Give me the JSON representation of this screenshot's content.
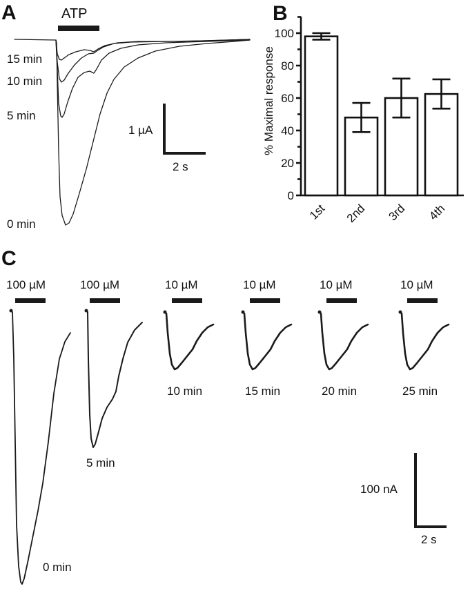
{
  "panels": {
    "A": {
      "letter": "A",
      "stimulus_label": "ATP",
      "trace_labels": [
        "15 min",
        "10 min",
        "5 min",
        "0 min"
      ],
      "scalebar": {
        "y_label": "1 µA",
        "x_label": "2 s"
      }
    },
    "B": {
      "letter": "B"
    },
    "C": {
      "letter": "C",
      "scalebar": {
        "y_label": "100 nA",
        "x_label": "2 s"
      },
      "traces": [
        {
          "concentration": "100 µM",
          "time": "0 min"
        },
        {
          "concentration": "100 µM",
          "time": "5 min"
        },
        {
          "concentration": "10 µM",
          "time": "10 min"
        },
        {
          "concentration": "10 µM",
          "time": "15 min"
        },
        {
          "concentration": "10 µM",
          "time": "20 min"
        },
        {
          "concentration": "10 µM",
          "time": "25 min"
        }
      ]
    }
  },
  "chart_data": [
    {
      "panel": "A",
      "type": "line",
      "title": "",
      "xlabel": "",
      "ylabel": "",
      "description": "Superimposed current traces evoked by ATP application at successive times",
      "series": [
        {
          "name": "0 min",
          "relative_peak": 1.0
        },
        {
          "name": "5 min",
          "relative_peak": 0.42
        },
        {
          "name": "10 min",
          "relative_peak": 0.23
        },
        {
          "name": "15 min",
          "relative_peak": 0.11
        }
      ],
      "scale": {
        "current": "1 µA",
        "time": "2 s"
      }
    },
    {
      "panel": "B",
      "type": "bar",
      "title": "",
      "xlabel": "",
      "ylabel": "% Maximal response",
      "categories": [
        "1st",
        "2nd",
        "3rd",
        "4th"
      ],
      "values": [
        98,
        48,
        60,
        62.5
      ],
      "error": [
        2,
        9,
        12,
        9
      ],
      "ylim": [
        0,
        110
      ],
      "yticks": [
        0,
        20,
        40,
        60,
        80,
        100
      ],
      "grid": false,
      "legend": "none"
    },
    {
      "panel": "C",
      "type": "line",
      "title": "",
      "description": "Individual current traces at different agonist concentrations and times",
      "series": [
        {
          "name": "0 min",
          "concentration": "100 µM",
          "relative_peak": 1.0
        },
        {
          "name": "5 min",
          "concentration": "100 µM",
          "relative_peak": 0.52
        },
        {
          "name": "10 min",
          "concentration": "10 µM",
          "relative_peak": 0.23
        },
        {
          "name": "15 min",
          "concentration": "10 µM",
          "relative_peak": 0.23
        },
        {
          "name": "20 min",
          "concentration": "10 µM",
          "relative_peak": 0.23
        },
        {
          "name": "25 min",
          "concentration": "10 µM",
          "relative_peak": 0.23
        }
      ],
      "scale": {
        "current": "100 nA",
        "time": "2 s"
      }
    }
  ]
}
